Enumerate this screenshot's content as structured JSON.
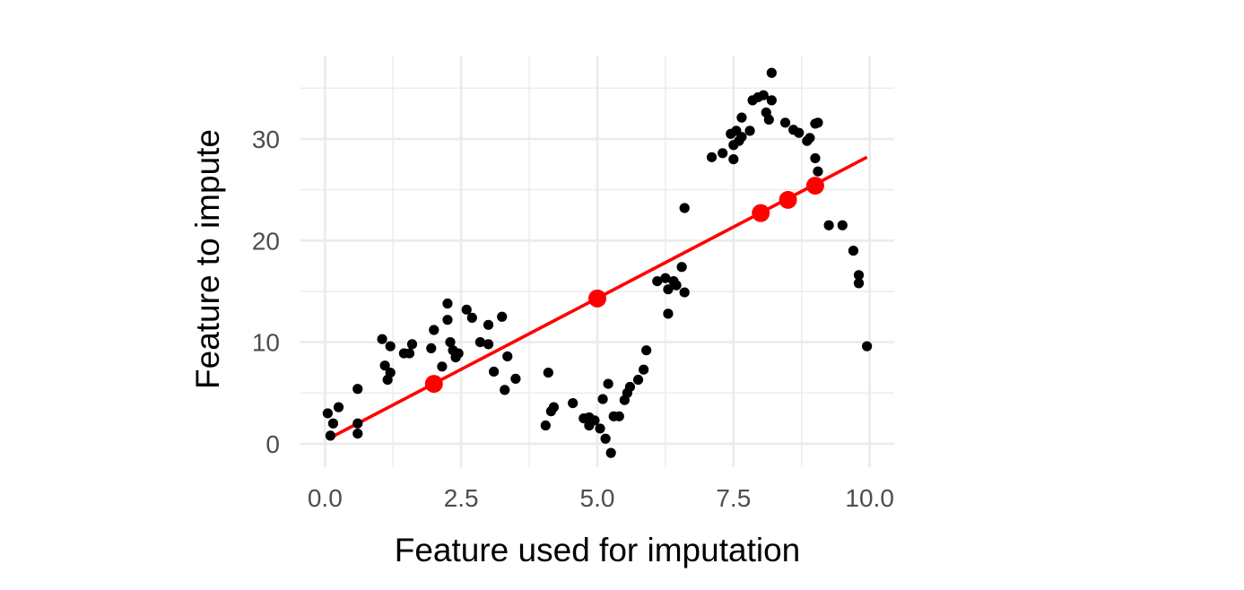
{
  "chart_data": {
    "type": "scatter",
    "title": "",
    "xlabel": "Feature used for imputation",
    "ylabel": "Feature to impute",
    "xlim": [
      -0.45,
      10.45
    ],
    "ylim": [
      -2.3,
      38.2
    ],
    "x_ticks": [
      0.0,
      2.5,
      5.0,
      7.5,
      10.0
    ],
    "x_tick_labels": [
      "0.0",
      "2.5",
      "5.0",
      "7.5",
      "10.0"
    ],
    "y_ticks": [
      0,
      10,
      20,
      30
    ],
    "y_tick_labels": [
      "0",
      "10",
      "20",
      "30"
    ],
    "grid": true,
    "legend": "none",
    "colors": {
      "points": "#000000",
      "fit_line": "#ff0000",
      "imputed_points": "#ff0000",
      "grid": "#ebebeb"
    },
    "series": [
      {
        "kind": "points",
        "points": [
          {
            "x": 0.05,
            "y": 3.0
          },
          {
            "x": 0.1,
            "y": 0.8
          },
          {
            "x": 0.15,
            "y": 2.0
          },
          {
            "x": 0.25,
            "y": 3.6
          },
          {
            "x": 0.6,
            "y": 2.0
          },
          {
            "x": 0.6,
            "y": 1.0
          },
          {
            "x": 0.6,
            "y": 5.4
          },
          {
            "x": 1.05,
            "y": 10.3
          },
          {
            "x": 1.1,
            "y": 7.7
          },
          {
            "x": 1.15,
            "y": 6.3
          },
          {
            "x": 1.2,
            "y": 9.6
          },
          {
            "x": 1.2,
            "y": 7.0
          },
          {
            "x": 1.45,
            "y": 8.9
          },
          {
            "x": 1.55,
            "y": 8.9
          },
          {
            "x": 1.6,
            "y": 9.8
          },
          {
            "x": 1.95,
            "y": 9.4
          },
          {
            "x": 2.0,
            "y": 11.2
          },
          {
            "x": 2.15,
            "y": 7.6
          },
          {
            "x": 2.25,
            "y": 13.8
          },
          {
            "x": 2.25,
            "y": 12.2
          },
          {
            "x": 2.3,
            "y": 10.0
          },
          {
            "x": 2.35,
            "y": 9.2
          },
          {
            "x": 2.4,
            "y": 8.5
          },
          {
            "x": 2.45,
            "y": 8.9
          },
          {
            "x": 2.6,
            "y": 13.2
          },
          {
            "x": 2.7,
            "y": 12.4
          },
          {
            "x": 2.85,
            "y": 10.0
          },
          {
            "x": 3.0,
            "y": 11.7
          },
          {
            "x": 3.0,
            "y": 9.8
          },
          {
            "x": 3.1,
            "y": 7.1
          },
          {
            "x": 3.25,
            "y": 12.5
          },
          {
            "x": 3.3,
            "y": 5.3
          },
          {
            "x": 3.35,
            "y": 8.6
          },
          {
            "x": 3.5,
            "y": 6.4
          },
          {
            "x": 4.05,
            "y": 1.8
          },
          {
            "x": 4.1,
            "y": 7.0
          },
          {
            "x": 4.15,
            "y": 3.2
          },
          {
            "x": 4.2,
            "y": 3.6
          },
          {
            "x": 4.55,
            "y": 4.0
          },
          {
            "x": 4.75,
            "y": 2.5
          },
          {
            "x": 4.85,
            "y": 2.6
          },
          {
            "x": 4.85,
            "y": 1.8
          },
          {
            "x": 4.95,
            "y": 2.3
          },
          {
            "x": 5.05,
            "y": 1.5
          },
          {
            "x": 5.1,
            "y": 4.4
          },
          {
            "x": 5.15,
            "y": 0.5
          },
          {
            "x": 5.2,
            "y": 5.9
          },
          {
            "x": 5.25,
            "y": -0.9
          },
          {
            "x": 5.3,
            "y": 2.7
          },
          {
            "x": 5.4,
            "y": 2.7
          },
          {
            "x": 5.5,
            "y": 4.3
          },
          {
            "x": 5.55,
            "y": 5.0
          },
          {
            "x": 5.6,
            "y": 5.6
          },
          {
            "x": 5.75,
            "y": 6.3
          },
          {
            "x": 5.85,
            "y": 7.3
          },
          {
            "x": 5.9,
            "y": 9.2
          },
          {
            "x": 6.1,
            "y": 16.0
          },
          {
            "x": 6.25,
            "y": 16.3
          },
          {
            "x": 6.3,
            "y": 12.8
          },
          {
            "x": 6.3,
            "y": 15.2
          },
          {
            "x": 6.4,
            "y": 16.0
          },
          {
            "x": 6.45,
            "y": 15.6
          },
          {
            "x": 6.55,
            "y": 17.4
          },
          {
            "x": 6.6,
            "y": 14.9
          },
          {
            "x": 6.6,
            "y": 23.2
          },
          {
            "x": 7.1,
            "y": 28.2
          },
          {
            "x": 7.3,
            "y": 28.6
          },
          {
            "x": 7.45,
            "y": 30.5
          },
          {
            "x": 7.5,
            "y": 28.0
          },
          {
            "x": 7.5,
            "y": 29.4
          },
          {
            "x": 7.55,
            "y": 30.8
          },
          {
            "x": 7.6,
            "y": 29.8
          },
          {
            "x": 7.65,
            "y": 32.1
          },
          {
            "x": 7.65,
            "y": 30.2
          },
          {
            "x": 7.8,
            "y": 30.8
          },
          {
            "x": 7.85,
            "y": 33.8
          },
          {
            "x": 7.95,
            "y": 34.1
          },
          {
            "x": 8.05,
            "y": 34.3
          },
          {
            "x": 8.1,
            "y": 32.6
          },
          {
            "x": 8.15,
            "y": 31.9
          },
          {
            "x": 8.2,
            "y": 33.8
          },
          {
            "x": 8.2,
            "y": 36.5
          },
          {
            "x": 8.45,
            "y": 31.6
          },
          {
            "x": 8.6,
            "y": 30.9
          },
          {
            "x": 8.7,
            "y": 30.6
          },
          {
            "x": 8.85,
            "y": 29.8
          },
          {
            "x": 8.9,
            "y": 30.1
          },
          {
            "x": 9.0,
            "y": 31.5
          },
          {
            "x": 9.05,
            "y": 31.6
          },
          {
            "x": 9.0,
            "y": 28.1
          },
          {
            "x": 9.05,
            "y": 26.8
          },
          {
            "x": 9.25,
            "y": 21.5
          },
          {
            "x": 9.5,
            "y": 21.5
          },
          {
            "x": 9.7,
            "y": 19.0
          },
          {
            "x": 9.8,
            "y": 16.6
          },
          {
            "x": 9.8,
            "y": 15.8
          },
          {
            "x": 9.95,
            "y": 9.6
          }
        ]
      },
      {
        "kind": "line",
        "points": [
          {
            "x": 0.1,
            "y": 0.6
          },
          {
            "x": 9.95,
            "y": 28.2
          }
        ]
      },
      {
        "kind": "imputed",
        "points": [
          {
            "x": 2.0,
            "y": 5.9
          },
          {
            "x": 5.0,
            "y": 14.3
          },
          {
            "x": 8.0,
            "y": 22.7
          },
          {
            "x": 8.5,
            "y": 24.0
          },
          {
            "x": 9.0,
            "y": 25.4
          }
        ]
      }
    ]
  }
}
